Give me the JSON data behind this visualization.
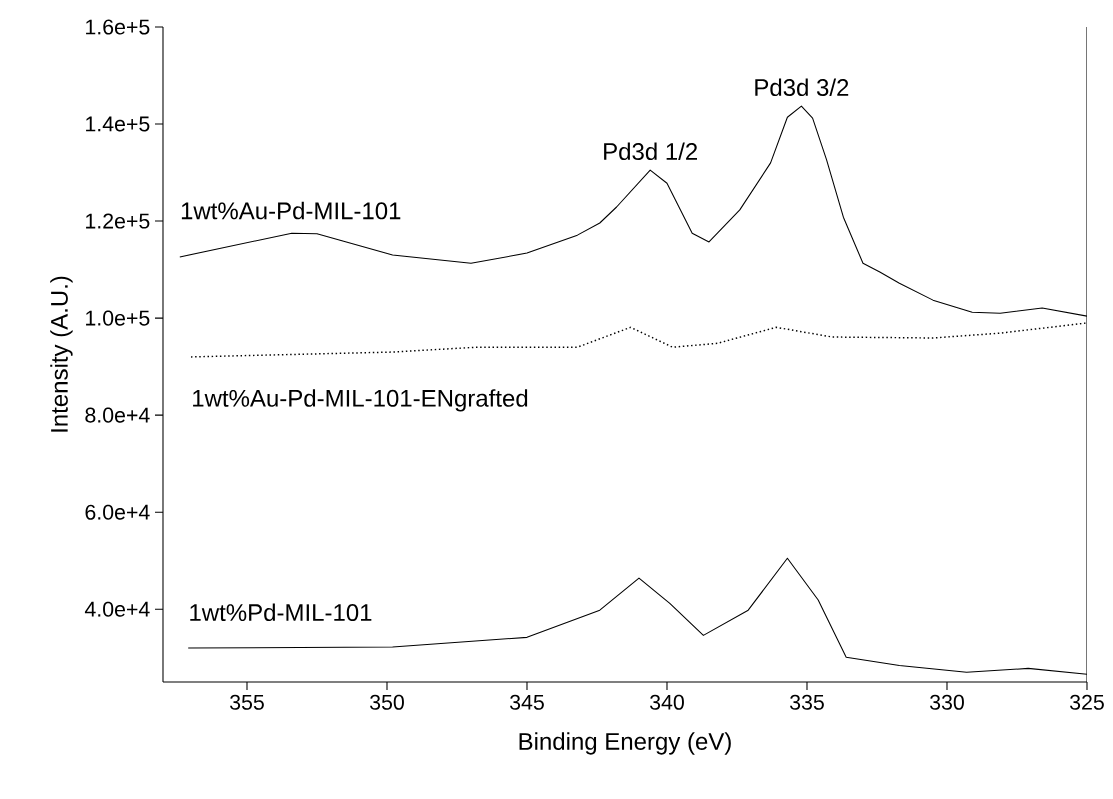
{
  "chart_data": {
    "type": "line",
    "xlabel": "Binding Energy (eV)",
    "ylabel": "Intensity (A.U.)",
    "xlim": [
      358,
      325
    ],
    "xticks": [
      355,
      350,
      345,
      340,
      335,
      330,
      325
    ],
    "ylim": [
      25000,
      160000
    ],
    "yticks": [
      {
        "value": 40000,
        "label": "4.0e+4"
      },
      {
        "value": 60000,
        "label": "6.0e+4"
      },
      {
        "value": 80000,
        "label": "8.0e+4"
      },
      {
        "value": 100000,
        "label": "1.0e+5"
      },
      {
        "value": 120000,
        "label": "1.2e+5"
      },
      {
        "value": 140000,
        "label": "1.4e+5"
      },
      {
        "value": 160000,
        "label": "1.6e+5"
      }
    ],
    "grid": false,
    "marker": "none",
    "series": [
      {
        "name": "1wt%Au-Pd-MIL-101",
        "color": "#000000",
        "line_style": "solid",
        "x": [
          357.4,
          353.4,
          352.5,
          349.8,
          347.0,
          345.0,
          343.2,
          342.4,
          341.8,
          340.6,
          340.0,
          339.1,
          338.5,
          337.4,
          336.3,
          335.7,
          335.2,
          334.8,
          334.3,
          333.7,
          333.0,
          332.4,
          331.7,
          330.5,
          329.1,
          328.1,
          326.6,
          325.0
        ],
        "values": [
          112600,
          117500,
          117400,
          113000,
          111300,
          113400,
          117100,
          119600,
          122900,
          130500,
          127800,
          117500,
          115700,
          122300,
          132000,
          141400,
          143700,
          141200,
          132600,
          120800,
          111300,
          109500,
          107200,
          103700,
          101200,
          101000,
          102100,
          100400
        ]
      },
      {
        "name": "1wt%Au-Pd-MIL-101-ENgrafted",
        "color": "#000000",
        "line_style": "dotted",
        "x": [
          357.0,
          349.8,
          346.8,
          343.2,
          341.3,
          339.8,
          338.2,
          336.1,
          334.1,
          330.5,
          328.1,
          325.0
        ],
        "values": [
          92000,
          93000,
          94000,
          94000,
          98100,
          94000,
          94800,
          98100,
          96100,
          95900,
          96900,
          99000
        ]
      },
      {
        "name": "1wt%Pd-MIL-101",
        "color": "#000000",
        "line_style": "solid",
        "x": [
          357.1,
          349.8,
          345.0,
          342.4,
          341.0,
          339.9,
          338.7,
          337.1,
          335.7,
          334.6,
          333.6,
          331.7,
          329.3,
          327.1,
          325.0
        ],
        "values": [
          32000,
          32200,
          34200,
          39800,
          46400,
          41200,
          34600,
          39800,
          50500,
          41900,
          30100,
          28400,
          27000,
          27800,
          26600
        ]
      }
    ],
    "annotations": [
      {
        "text": "Pd3d 1/2",
        "x": 340.6,
        "y": 130500
      },
      {
        "text": "Pd3d 3/2",
        "x": 335.2,
        "y": 143700
      }
    ]
  }
}
